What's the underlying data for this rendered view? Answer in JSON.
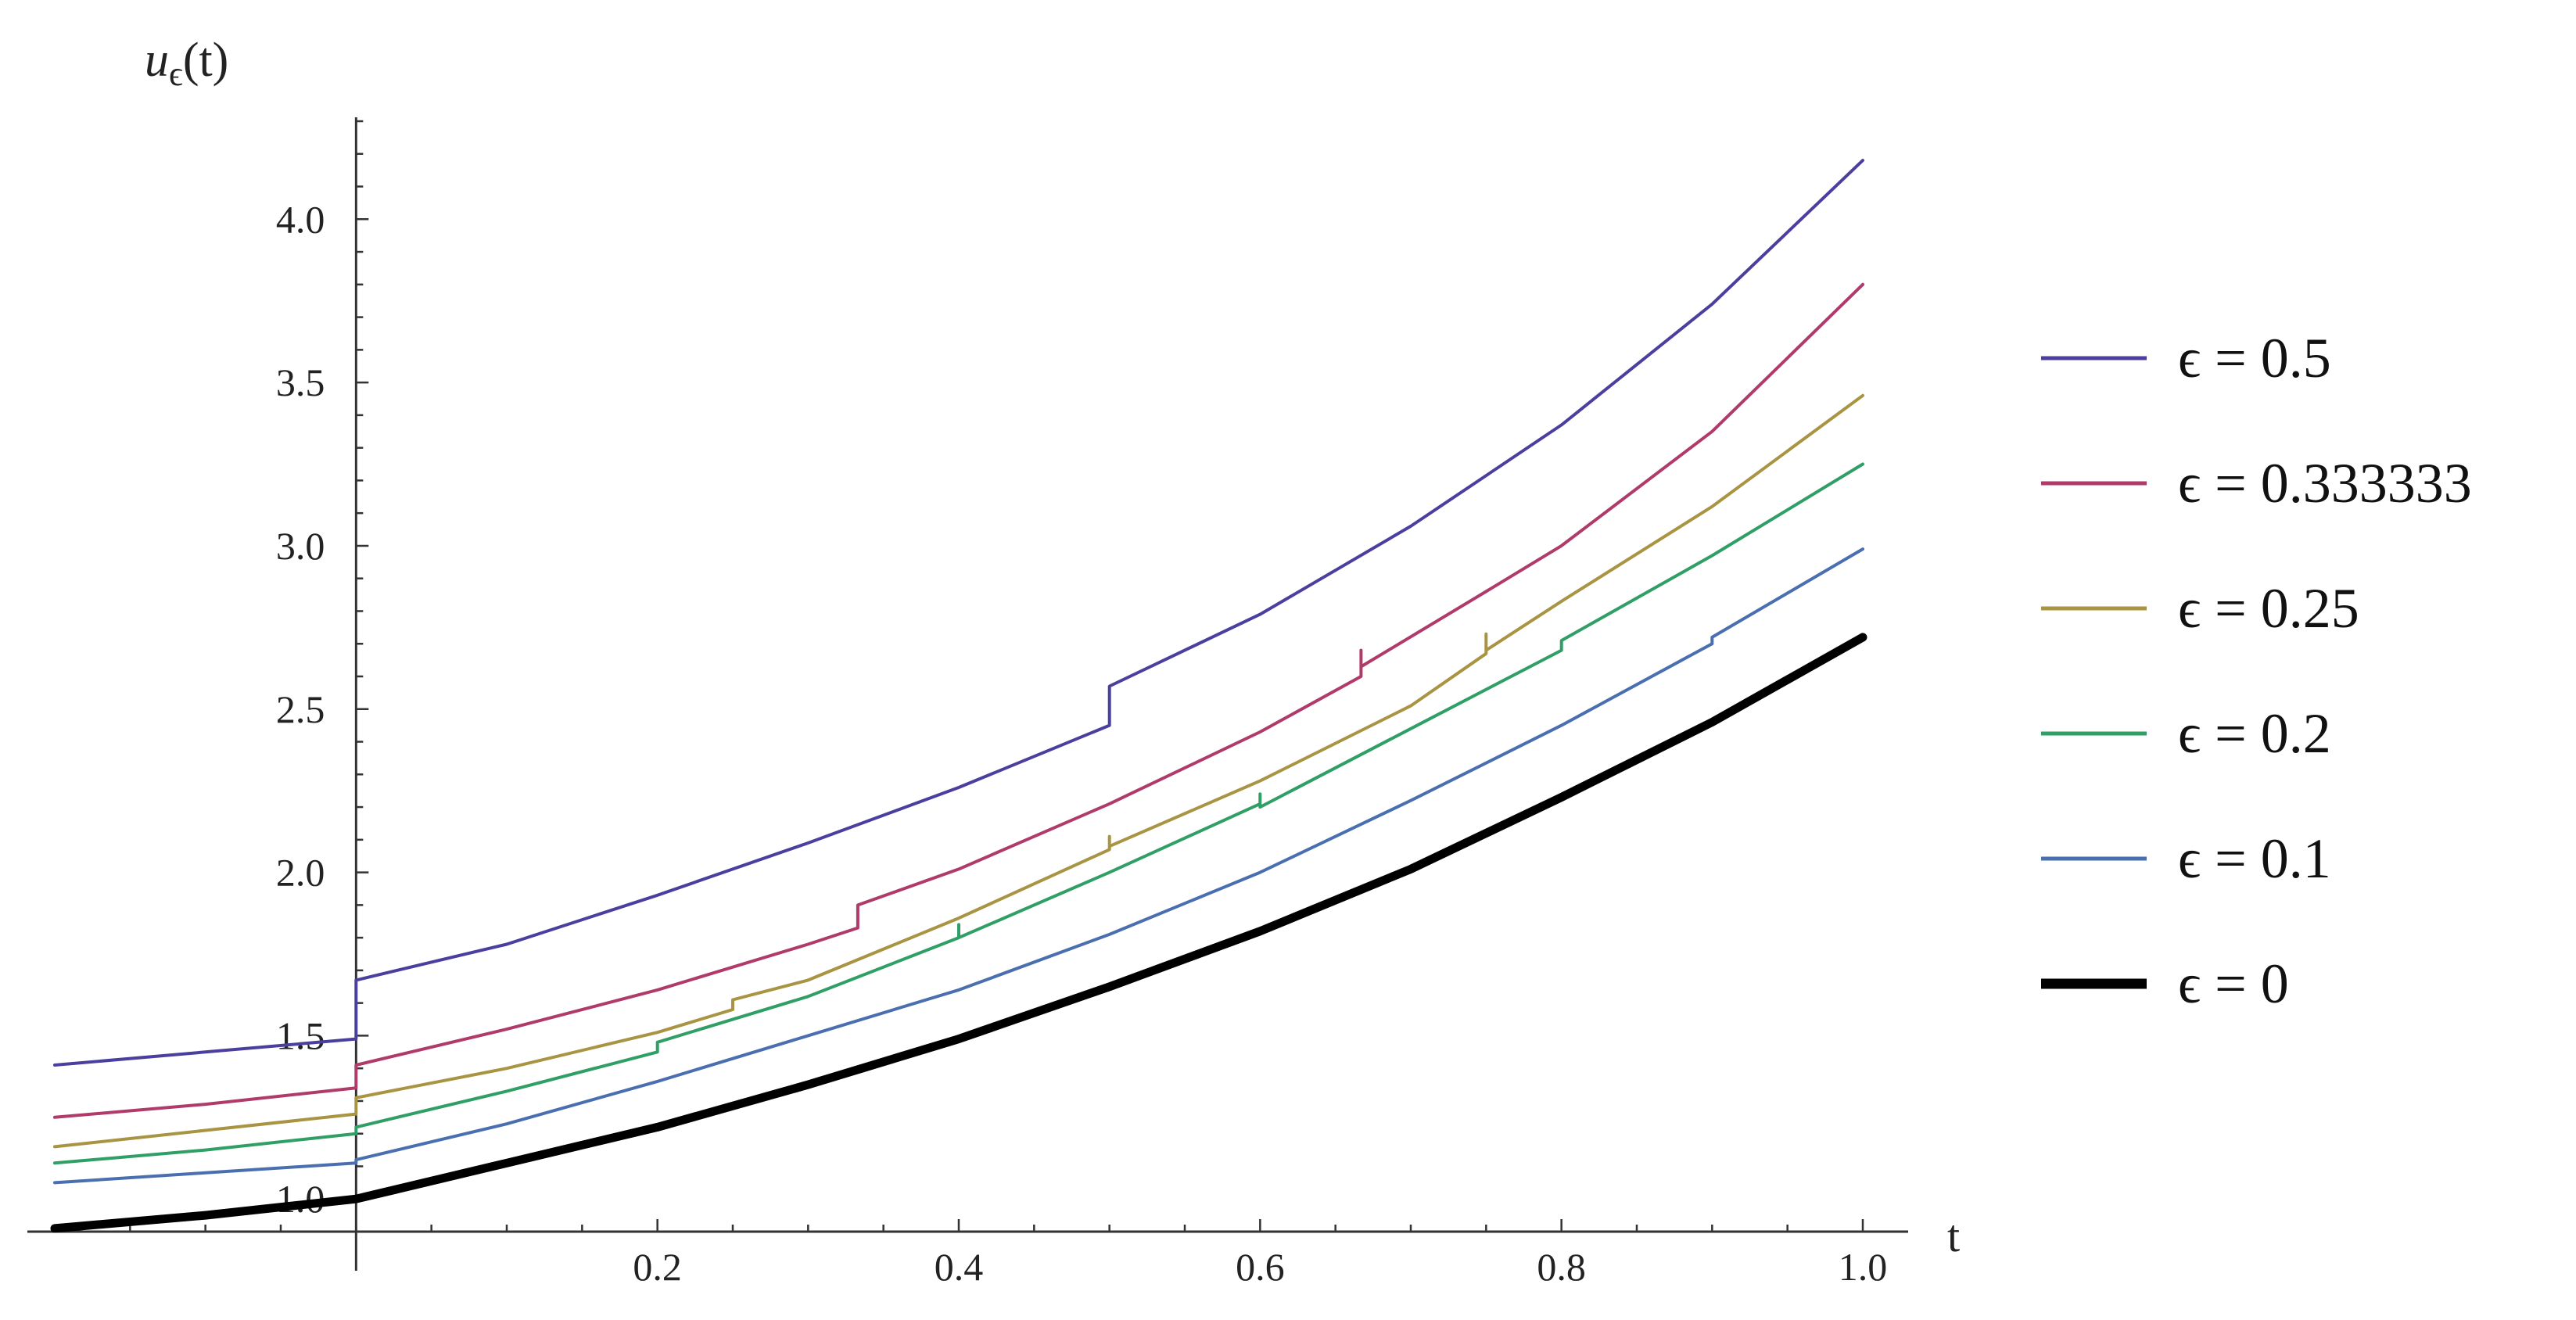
{
  "chart_data": {
    "type": "line",
    "title": "",
    "xlabel": "t",
    "ylabel": {
      "main": "u",
      "sub": "ϵ",
      "tail": "(t)"
    },
    "xlim": [
      -0.2,
      1.0
    ],
    "ylim": [
      0.9,
      4.3
    ],
    "x_ticks": [
      0.2,
      0.4,
      0.6,
      0.8,
      1.0
    ],
    "x_tick_labels": [
      "0.2",
      "0.4",
      "0.6",
      "0.8",
      "1.0"
    ],
    "y_ticks": [
      1.0,
      1.5,
      2.0,
      2.5,
      3.0,
      3.5,
      4.0
    ],
    "y_tick_labels": [
      "1.0",
      "1.5",
      "2.0",
      "2.5",
      "3.0",
      "3.5",
      "4.0"
    ],
    "grid": false,
    "legend_position": "right",
    "series": [
      {
        "name": "ϵ = 0.5",
        "eps": 0.5,
        "color": "#4a3f9f",
        "width": "normal",
        "points": [
          [
            -0.2,
            1.41
          ],
          [
            -0.1,
            1.45
          ],
          [
            0,
            1.49
          ],
          [
            0,
            1.67
          ],
          [
            0.1,
            1.78
          ],
          [
            0.2,
            1.93
          ],
          [
            0.3,
            2.09
          ],
          [
            0.4,
            2.26
          ],
          [
            0.5,
            2.45
          ],
          [
            0.5,
            2.57
          ],
          [
            0.6,
            2.79
          ],
          [
            0.7,
            3.06
          ],
          [
            0.8,
            3.37
          ],
          [
            0.9,
            3.74
          ],
          [
            1.0,
            4.18
          ]
        ]
      },
      {
        "name": "ϵ = 0.333333",
        "eps": 0.333333,
        "color": "#b03a6a",
        "width": "normal",
        "points": [
          [
            -0.2,
            1.25
          ],
          [
            -0.1,
            1.29
          ],
          [
            0,
            1.34
          ],
          [
            0,
            1.41
          ],
          [
            0.1,
            1.52
          ],
          [
            0.2,
            1.64
          ],
          [
            0.3,
            1.78
          ],
          [
            0.333,
            1.83
          ],
          [
            0.333,
            1.9
          ],
          [
            0.4,
            2.01
          ],
          [
            0.5,
            2.21
          ],
          [
            0.6,
            2.43
          ],
          [
            0.667,
            2.6
          ],
          [
            0.667,
            2.68
          ],
          [
            0.667,
            2.63
          ],
          [
            0.75,
            2.86
          ],
          [
            0.8,
            3.0
          ],
          [
            0.9,
            3.35
          ],
          [
            1.0,
            3.8
          ]
        ]
      },
      {
        "name": "ϵ = 0.25",
        "eps": 0.25,
        "color": "#a89442",
        "width": "normal",
        "points": [
          [
            -0.2,
            1.16
          ],
          [
            -0.1,
            1.21
          ],
          [
            0,
            1.26
          ],
          [
            0,
            1.31
          ],
          [
            0.1,
            1.4
          ],
          [
            0.2,
            1.51
          ],
          [
            0.25,
            1.58
          ],
          [
            0.25,
            1.61
          ],
          [
            0.3,
            1.67
          ],
          [
            0.4,
            1.86
          ],
          [
            0.5,
            2.07
          ],
          [
            0.5,
            2.11
          ],
          [
            0.5,
            2.08
          ],
          [
            0.6,
            2.28
          ],
          [
            0.7,
            2.51
          ],
          [
            0.75,
            2.67
          ],
          [
            0.75,
            2.73
          ],
          [
            0.75,
            2.68
          ],
          [
            0.8,
            2.83
          ],
          [
            0.9,
            3.12
          ],
          [
            1.0,
            3.46
          ]
        ]
      },
      {
        "name": "ϵ = 0.2",
        "eps": 0.2,
        "color": "#2f9f66",
        "width": "normal",
        "points": [
          [
            -0.2,
            1.11
          ],
          [
            -0.1,
            1.15
          ],
          [
            0,
            1.2
          ],
          [
            0,
            1.22
          ],
          [
            0.1,
            1.33
          ],
          [
            0.2,
            1.45
          ],
          [
            0.2,
            1.48
          ],
          [
            0.3,
            1.62
          ],
          [
            0.4,
            1.8
          ],
          [
            0.4,
            1.84
          ],
          [
            0.4,
            1.8
          ],
          [
            0.5,
            2.0
          ],
          [
            0.6,
            2.21
          ],
          [
            0.6,
            2.24
          ],
          [
            0.6,
            2.2
          ],
          [
            0.7,
            2.44
          ],
          [
            0.8,
            2.68
          ],
          [
            0.8,
            2.71
          ],
          [
            0.9,
            2.97
          ],
          [
            1.0,
            3.25
          ]
        ]
      },
      {
        "name": "ϵ = 0.1",
        "eps": 0.1,
        "color": "#4a6fb0",
        "width": "normal",
        "points": [
          [
            -0.2,
            1.05
          ],
          [
            -0.1,
            1.08
          ],
          [
            0,
            1.11
          ],
          [
            0,
            1.12
          ],
          [
            0.1,
            1.23
          ],
          [
            0.2,
            1.36
          ],
          [
            0.3,
            1.5
          ],
          [
            0.4,
            1.64
          ],
          [
            0.5,
            1.81
          ],
          [
            0.6,
            2.0
          ],
          [
            0.7,
            2.22
          ],
          [
            0.8,
            2.45
          ],
          [
            0.9,
            2.7
          ],
          [
            0.9,
            2.72
          ],
          [
            1.0,
            2.99
          ]
        ]
      },
      {
        "name": "ϵ = 0",
        "eps": 0,
        "color": "#000000",
        "width": "bold",
        "points": [
          [
            -0.2,
            0.91
          ],
          [
            -0.1,
            0.95
          ],
          [
            0,
            1.0
          ],
          [
            0.1,
            1.11
          ],
          [
            0.2,
            1.22
          ],
          [
            0.3,
            1.35
          ],
          [
            0.4,
            1.49
          ],
          [
            0.5,
            1.65
          ],
          [
            0.6,
            1.82
          ],
          [
            0.7,
            2.01
          ],
          [
            0.8,
            2.23
          ],
          [
            0.9,
            2.46
          ],
          [
            1.0,
            2.72
          ]
        ]
      }
    ]
  }
}
